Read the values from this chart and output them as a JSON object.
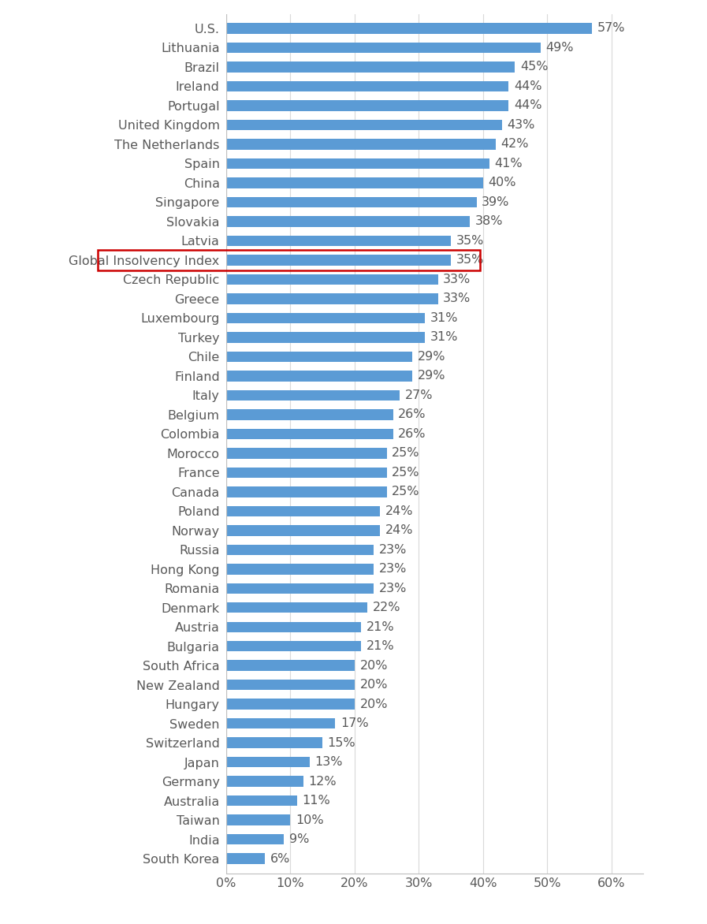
{
  "categories": [
    "U.S.",
    "Lithuania",
    "Brazil",
    "Ireland",
    "Portugal",
    "United Kingdom",
    "The Netherlands",
    "Spain",
    "China",
    "Singapore",
    "Slovakia",
    "Latvia",
    "Global Insolvency Index",
    "Czech Republic",
    "Greece",
    "Luxembourg",
    "Turkey",
    "Chile",
    "Finland",
    "Italy",
    "Belgium",
    "Colombia",
    "Morocco",
    "France",
    "Canada",
    "Poland",
    "Norway",
    "Russia",
    "Hong Kong",
    "Romania",
    "Denmark",
    "Austria",
    "Bulgaria",
    "South Africa",
    "New Zealand",
    "Hungary",
    "Sweden",
    "Switzerland",
    "Japan",
    "Germany",
    "Australia",
    "Taiwan",
    "India",
    "South Korea"
  ],
  "values": [
    57,
    49,
    45,
    44,
    44,
    43,
    42,
    41,
    40,
    39,
    38,
    35,
    35,
    33,
    33,
    31,
    31,
    29,
    29,
    27,
    26,
    26,
    25,
    25,
    25,
    24,
    24,
    23,
    23,
    23,
    22,
    21,
    21,
    20,
    20,
    20,
    17,
    15,
    13,
    12,
    11,
    10,
    9,
    6
  ],
  "highlight_index": 12,
  "bar_color": "#5b9bd5",
  "highlight_box_color": "#cc0000",
  "background_color": "#ffffff",
  "xlim_max": 65,
  "xtick_values": [
    0,
    10,
    20,
    30,
    40,
    50,
    60
  ],
  "xtick_labels": [
    "0%",
    "10%",
    "20%",
    "30%",
    "40%",
    "50%",
    "60%"
  ],
  "bar_height": 0.55,
  "label_fontsize": 11.5,
  "value_fontsize": 11.5,
  "tick_fontsize": 11.5,
  "label_color": "#595959",
  "value_color": "#595959",
  "tick_color": "#595959",
  "grid_color": "#d9d9d9",
  "spine_color": "#bfbfbf",
  "vline_color": "#bfbfbf"
}
